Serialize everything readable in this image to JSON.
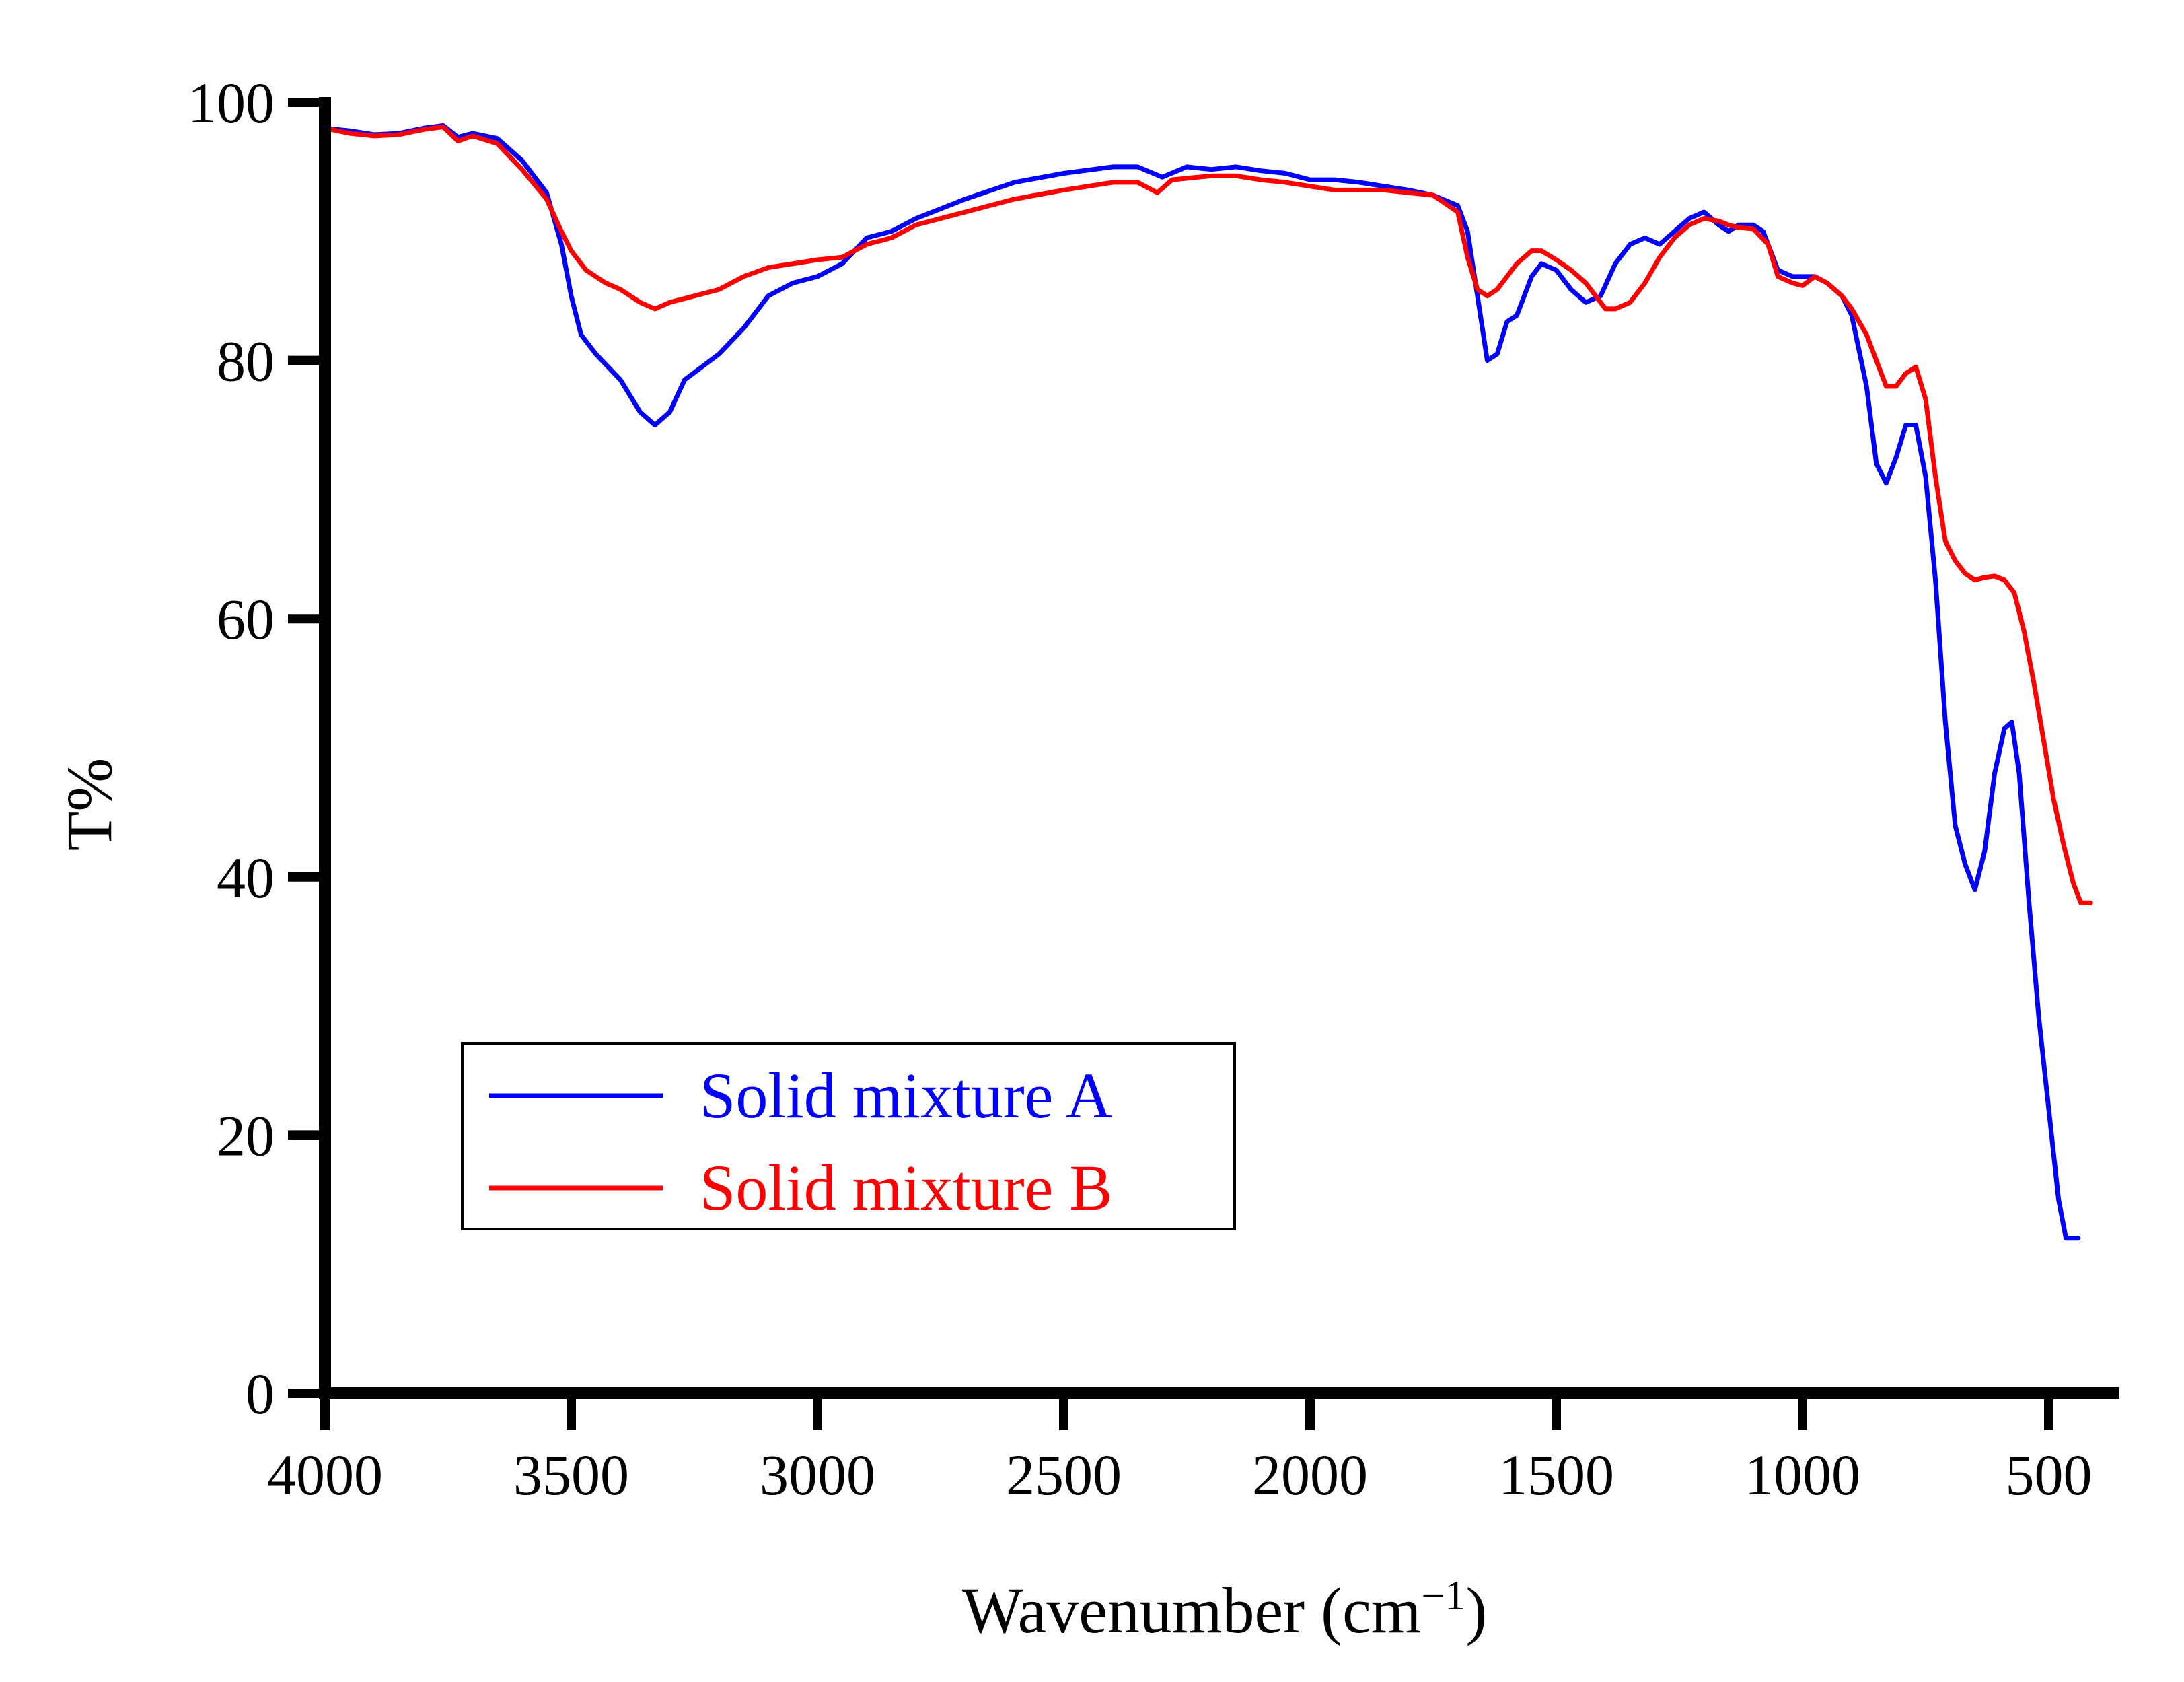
{
  "chart_data": {
    "type": "line",
    "title": "",
    "xlabel": "Wavenumber (cm",
    "xlabel_superscript": "−1",
    "xlabel_close": ")",
    "ylabel": "T%",
    "xlim": [
      4000,
      400
    ],
    "ylim": [
      0,
      100
    ],
    "x_reversed": true,
    "grid": false,
    "legend_position": "lower-left",
    "x_ticks": [
      4000,
      3500,
      3000,
      2500,
      2000,
      1500,
      1000,
      500
    ],
    "x_tick_labels": [
      "4000",
      "3500",
      "3000",
      "2500",
      "2000",
      "1500",
      "1000",
      "500"
    ],
    "y_ticks": [
      0,
      20,
      40,
      60,
      80,
      100
    ],
    "y_tick_labels": [
      "0",
      "20",
      "40",
      "60",
      "80",
      "100"
    ],
    "series": [
      {
        "name": "Solid mixture A",
        "color": "#0000ff",
        "points": [
          [
            4000,
            98
          ],
          [
            3950,
            97.8
          ],
          [
            3900,
            97.5
          ],
          [
            3850,
            97.6
          ],
          [
            3800,
            98
          ],
          [
            3760,
            98.2
          ],
          [
            3730,
            97.3
          ],
          [
            3700,
            97.6
          ],
          [
            3650,
            97.2
          ],
          [
            3600,
            95.5
          ],
          [
            3550,
            93
          ],
          [
            3520,
            89
          ],
          [
            3500,
            85
          ],
          [
            3480,
            82
          ],
          [
            3450,
            80.5
          ],
          [
            3400,
            78.5
          ],
          [
            3360,
            76
          ],
          [
            3330,
            75
          ],
          [
            3300,
            76
          ],
          [
            3270,
            78.5
          ],
          [
            3200,
            80.5
          ],
          [
            3150,
            82.5
          ],
          [
            3100,
            85
          ],
          [
            3050,
            86
          ],
          [
            3000,
            86.5
          ],
          [
            2950,
            87.5
          ],
          [
            2900,
            89.5
          ],
          [
            2850,
            90
          ],
          [
            2800,
            91
          ],
          [
            2700,
            92.5
          ],
          [
            2600,
            93.8
          ],
          [
            2500,
            94.5
          ],
          [
            2400,
            95
          ],
          [
            2350,
            95
          ],
          [
            2300,
            94.2
          ],
          [
            2250,
            95
          ],
          [
            2200,
            94.8
          ],
          [
            2150,
            95
          ],
          [
            2100,
            94.7
          ],
          [
            2050,
            94.5
          ],
          [
            2000,
            94
          ],
          [
            1950,
            94
          ],
          [
            1900,
            93.8
          ],
          [
            1850,
            93.5
          ],
          [
            1800,
            93.2
          ],
          [
            1750,
            92.8
          ],
          [
            1700,
            92
          ],
          [
            1680,
            90
          ],
          [
            1660,
            85
          ],
          [
            1640,
            80
          ],
          [
            1620,
            80.5
          ],
          [
            1600,
            83
          ],
          [
            1580,
            83.5
          ],
          [
            1550,
            86.5
          ],
          [
            1530,
            87.5
          ],
          [
            1500,
            87
          ],
          [
            1470,
            85.5
          ],
          [
            1440,
            84.5
          ],
          [
            1410,
            85
          ],
          [
            1380,
            87.5
          ],
          [
            1350,
            89
          ],
          [
            1320,
            89.5
          ],
          [
            1290,
            89
          ],
          [
            1260,
            90
          ],
          [
            1230,
            91
          ],
          [
            1200,
            91.5
          ],
          [
            1170,
            90.5
          ],
          [
            1150,
            90
          ],
          [
            1130,
            90.5
          ],
          [
            1100,
            90.5
          ],
          [
            1080,
            90
          ],
          [
            1050,
            87
          ],
          [
            1020,
            86.5
          ],
          [
            1000,
            86.5
          ],
          [
            975,
            86.5
          ],
          [
            950,
            86
          ],
          [
            920,
            85
          ],
          [
            900,
            83.5
          ],
          [
            870,
            78
          ],
          [
            850,
            72
          ],
          [
            830,
            70.5
          ],
          [
            810,
            72.5
          ],
          [
            790,
            75
          ],
          [
            770,
            75
          ],
          [
            750,
            71
          ],
          [
            730,
            63
          ],
          [
            710,
            52
          ],
          [
            690,
            44
          ],
          [
            670,
            41
          ],
          [
            650,
            39
          ],
          [
            630,
            42
          ],
          [
            610,
            48
          ],
          [
            590,
            51.5
          ],
          [
            575,
            52
          ],
          [
            560,
            48
          ],
          [
            540,
            38
          ],
          [
            520,
            29
          ],
          [
            500,
            22
          ],
          [
            480,
            15
          ],
          [
            465,
            12
          ],
          [
            440,
            12
          ]
        ]
      },
      {
        "name": "Solid mixture B",
        "color": "#ff0000",
        "points": [
          [
            4000,
            98
          ],
          [
            3950,
            97.6
          ],
          [
            3900,
            97.4
          ],
          [
            3850,
            97.5
          ],
          [
            3800,
            97.9
          ],
          [
            3760,
            98.1
          ],
          [
            3730,
            97
          ],
          [
            3700,
            97.4
          ],
          [
            3650,
            96.8
          ],
          [
            3600,
            94.8
          ],
          [
            3550,
            92.5
          ],
          [
            3520,
            90
          ],
          [
            3500,
            88.5
          ],
          [
            3470,
            87
          ],
          [
            3430,
            86
          ],
          [
            3400,
            85.5
          ],
          [
            3360,
            84.5
          ],
          [
            3330,
            84
          ],
          [
            3300,
            84.5
          ],
          [
            3250,
            85
          ],
          [
            3200,
            85.5
          ],
          [
            3150,
            86.5
          ],
          [
            3100,
            87.2
          ],
          [
            3050,
            87.5
          ],
          [
            3000,
            87.8
          ],
          [
            2950,
            88
          ],
          [
            2900,
            89
          ],
          [
            2850,
            89.5
          ],
          [
            2800,
            90.5
          ],
          [
            2700,
            91.5
          ],
          [
            2600,
            92.5
          ],
          [
            2500,
            93.2
          ],
          [
            2400,
            93.8
          ],
          [
            2350,
            93.8
          ],
          [
            2310,
            93
          ],
          [
            2280,
            94
          ],
          [
            2200,
            94.3
          ],
          [
            2150,
            94.3
          ],
          [
            2100,
            94
          ],
          [
            2050,
            93.8
          ],
          [
            2000,
            93.5
          ],
          [
            1950,
            93.2
          ],
          [
            1900,
            93.2
          ],
          [
            1850,
            93.2
          ],
          [
            1800,
            93
          ],
          [
            1750,
            92.8
          ],
          [
            1700,
            91.5
          ],
          [
            1680,
            88
          ],
          [
            1660,
            85.5
          ],
          [
            1640,
            85
          ],
          [
            1620,
            85.5
          ],
          [
            1600,
            86.5
          ],
          [
            1580,
            87.5
          ],
          [
            1550,
            88.5
          ],
          [
            1530,
            88.5
          ],
          [
            1500,
            87.8
          ],
          [
            1470,
            87
          ],
          [
            1440,
            86
          ],
          [
            1420,
            85
          ],
          [
            1400,
            84
          ],
          [
            1380,
            84
          ],
          [
            1350,
            84.5
          ],
          [
            1320,
            86
          ],
          [
            1290,
            88
          ],
          [
            1260,
            89.5
          ],
          [
            1230,
            90.5
          ],
          [
            1200,
            91
          ],
          [
            1170,
            90.8
          ],
          [
            1150,
            90.5
          ],
          [
            1130,
            90.3
          ],
          [
            1100,
            90.2
          ],
          [
            1070,
            89
          ],
          [
            1050,
            86.5
          ],
          [
            1020,
            86
          ],
          [
            1000,
            85.8
          ],
          [
            975,
            86.5
          ],
          [
            950,
            86
          ],
          [
            920,
            85
          ],
          [
            900,
            84
          ],
          [
            870,
            82
          ],
          [
            850,
            80
          ],
          [
            830,
            78
          ],
          [
            810,
            78
          ],
          [
            790,
            79
          ],
          [
            770,
            79.5
          ],
          [
            750,
            77
          ],
          [
            730,
            71
          ],
          [
            710,
            66
          ],
          [
            690,
            64.5
          ],
          [
            670,
            63.5
          ],
          [
            650,
            63
          ],
          [
            630,
            63.2
          ],
          [
            610,
            63.3
          ],
          [
            590,
            63
          ],
          [
            570,
            62
          ],
          [
            550,
            59
          ],
          [
            530,
            55
          ],
          [
            510,
            50.5
          ],
          [
            490,
            46
          ],
          [
            470,
            42.5
          ],
          [
            450,
            39.5
          ],
          [
            435,
            38
          ],
          [
            415,
            38
          ]
        ]
      }
    ]
  }
}
